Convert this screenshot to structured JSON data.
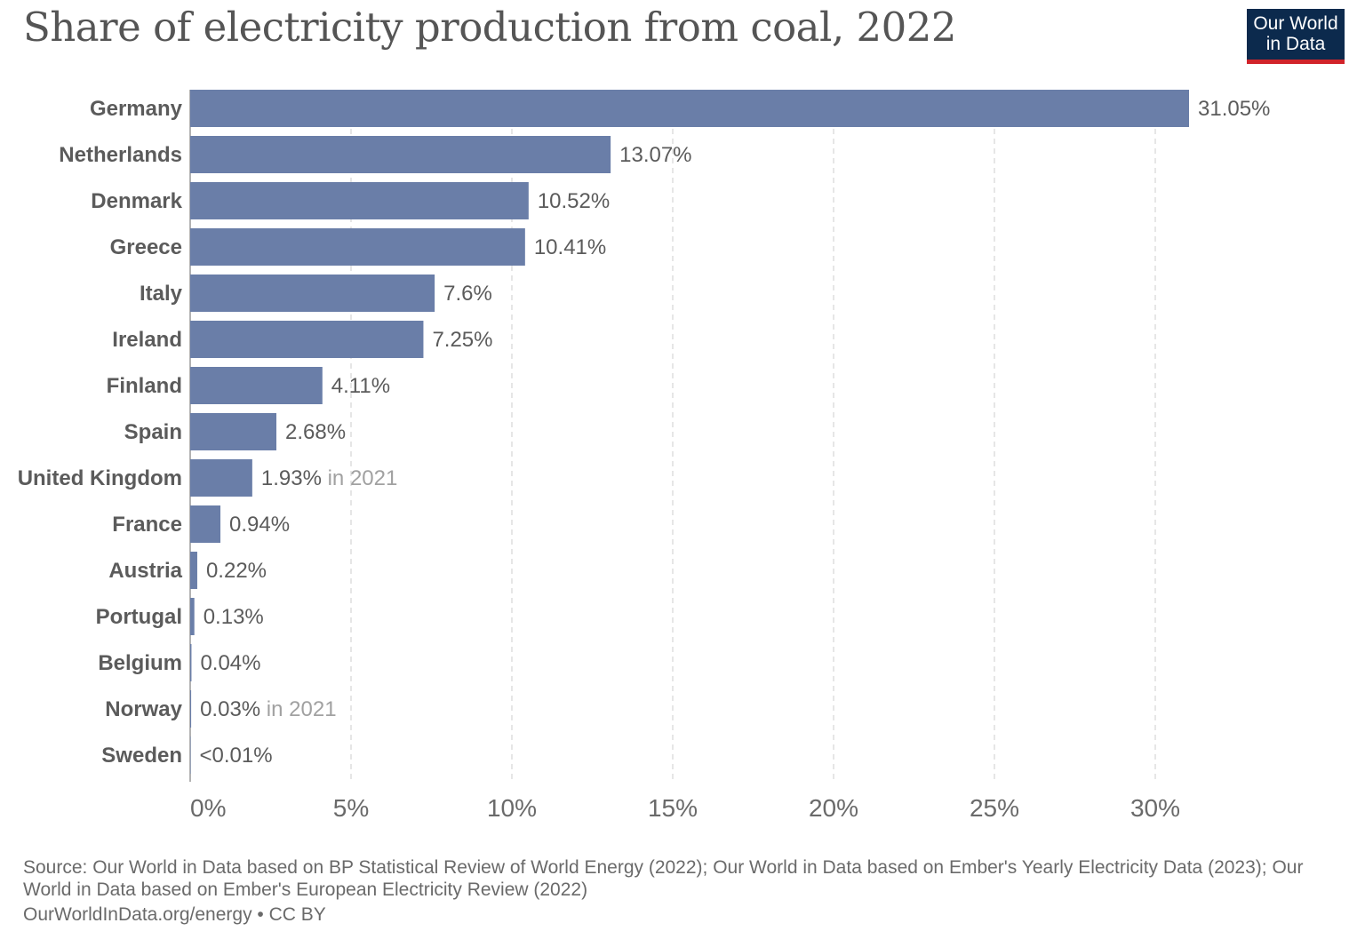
{
  "title": "Share of electricity production from coal, 2022",
  "logo": {
    "line1": "Our World",
    "line2": "in Data"
  },
  "colors": {
    "bar": "#6a7ea8",
    "grid": "#dddddd",
    "axis": "#999999",
    "logo_bg": "#0c2a4d",
    "logo_accent": "#d1232a"
  },
  "chart_data": {
    "type": "bar",
    "orientation": "horizontal",
    "title": "Share of electricity production from coal, 2022",
    "categories": [
      "Germany",
      "Netherlands",
      "Denmark",
      "Greece",
      "Italy",
      "Ireland",
      "Finland",
      "Spain",
      "United Kingdom",
      "France",
      "Austria",
      "Portugal",
      "Belgium",
      "Norway",
      "Sweden"
    ],
    "values": [
      31.05,
      13.07,
      10.52,
      10.41,
      7.6,
      7.25,
      4.11,
      2.68,
      1.93,
      0.94,
      0.22,
      0.13,
      0.04,
      0.03,
      0.005
    ],
    "value_labels": [
      "31.05%",
      "13.07%",
      "10.52%",
      "10.41%",
      "7.6%",
      "7.25%",
      "4.11%",
      "2.68%",
      "1.93%",
      "0.94%",
      "0.22%",
      "0.13%",
      "0.04%",
      "0.03%",
      "<0.01%"
    ],
    "value_notes": [
      "",
      "",
      "",
      "",
      "",
      "",
      "",
      "",
      "in 2021",
      "",
      "",
      "",
      "",
      "in 2021",
      ""
    ],
    "xlim": [
      0,
      30
    ],
    "xticks": [
      0,
      5,
      10,
      15,
      20,
      25,
      30
    ],
    "xtick_labels": [
      "0%",
      "5%",
      "10%",
      "15%",
      "20%",
      "25%",
      "30%"
    ],
    "grid": true,
    "legend": "none"
  },
  "footer": {
    "source": "Source: Our World in Data based on BP Statistical Review of World Energy (2022); Our World in Data based on Ember's Yearly Electricity Data (2023); Our World in Data based on Ember's European Electricity Review (2022)",
    "url": "OurWorldInData.org/energy • CC BY"
  }
}
